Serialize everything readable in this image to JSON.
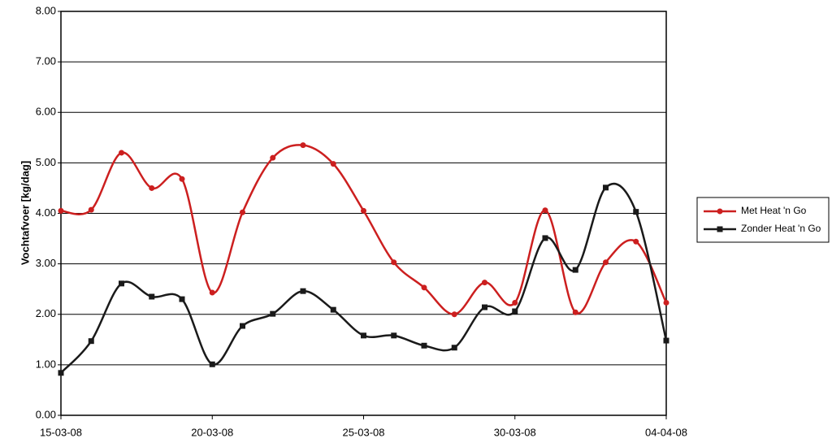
{
  "chart_data": {
    "type": "line",
    "y_label": "Vochtafvoer [kg/dag]",
    "categories": [
      "15-03-08",
      null,
      null,
      null,
      null,
      "20-03-08",
      null,
      null,
      null,
      null,
      "25-03-08",
      null,
      null,
      null,
      null,
      "30-03-08",
      null,
      null,
      null,
      null,
      "04-04-08"
    ],
    "series": [
      {
        "name": "Met Heat 'n Go",
        "color": "#cc1f1f",
        "marker": "circle",
        "values": [
          4.05,
          4.07,
          5.2,
          4.5,
          4.68,
          2.43,
          4.02,
          5.1,
          5.35,
          4.98,
          4.05,
          3.03,
          2.53,
          2.0,
          2.63,
          2.23,
          4.06,
          2.04,
          3.03,
          3.44,
          2.23
        ]
      },
      {
        "name": "Zonder Heat 'n Go",
        "color": "#1a1a1a",
        "marker": "square",
        "values": [
          0.84,
          1.47,
          2.61,
          2.35,
          2.3,
          1.01,
          1.77,
          2.01,
          2.46,
          2.09,
          1.58,
          1.58,
          1.38,
          1.34,
          2.14,
          2.06,
          3.51,
          2.88,
          4.51,
          4.03,
          1.48
        ]
      }
    ],
    "ylim": [
      0,
      8
    ],
    "yticks": [
      {
        "value": 0,
        "label": "0.00"
      },
      {
        "value": 1,
        "label": "1.00"
      },
      {
        "value": 2,
        "label": "2.00"
      },
      {
        "value": 3,
        "label": "3.00"
      },
      {
        "value": 4,
        "label": "4.00"
      },
      {
        "value": 5,
        "label": "5.00"
      },
      {
        "value": 6,
        "label": "6.00"
      },
      {
        "value": 7,
        "label": "7.00"
      },
      {
        "value": 8,
        "label": "8.00"
      }
    ],
    "grid": true,
    "legend": "right",
    "smooth": true
  }
}
